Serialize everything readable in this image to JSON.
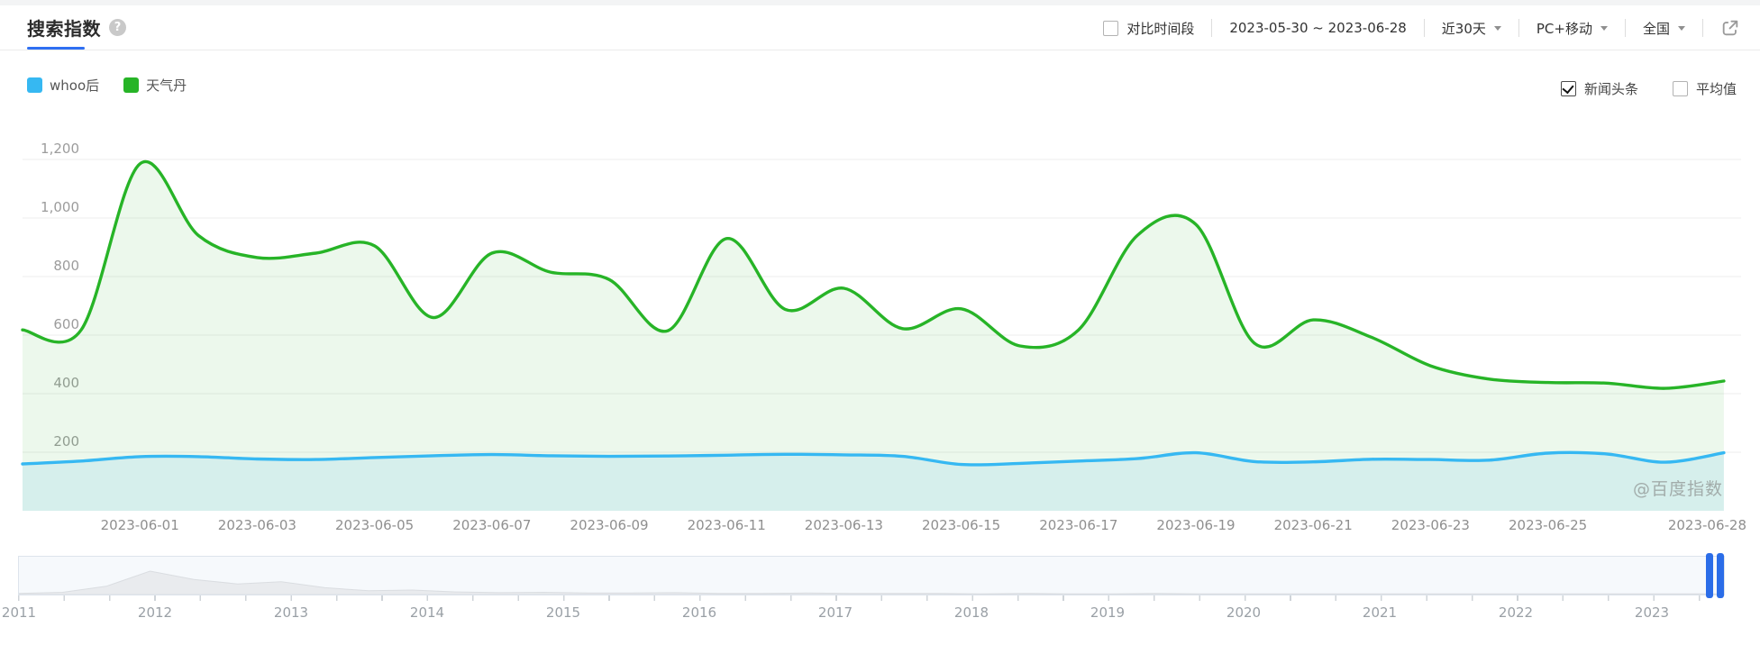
{
  "header": {
    "title": "搜索指数",
    "help": "?"
  },
  "toolbar": {
    "compare_label": "对比时间段",
    "date_range": "2023-05-30 ~ 2023-06-28",
    "period": "近30天",
    "device": "PC+移动",
    "region": "全国"
  },
  "legend": [
    {
      "name": "whoo后",
      "color": "#36b8f2"
    },
    {
      "name": "天气丹",
      "color": "#27b427"
    }
  ],
  "options": [
    {
      "label": "新闻头条",
      "checked": true
    },
    {
      "label": "平均值",
      "checked": false
    }
  ],
  "watermark": "@百度指数",
  "colors": {
    "accent_blue": "#2f6ff2",
    "slider_handle": "#2b6de8",
    "grid_line": "#ededed",
    "axis_text": "#9c9c9c"
  },
  "chart_data": {
    "type": "line",
    "title": "搜索指数",
    "x": [
      "2023-05-30",
      "2023-05-31",
      "2023-06-01",
      "2023-06-02",
      "2023-06-03",
      "2023-06-04",
      "2023-06-05",
      "2023-06-06",
      "2023-06-07",
      "2023-06-08",
      "2023-06-09",
      "2023-06-10",
      "2023-06-11",
      "2023-06-12",
      "2023-06-13",
      "2023-06-14",
      "2023-06-15",
      "2023-06-16",
      "2023-06-17",
      "2023-06-18",
      "2023-06-19",
      "2023-06-20",
      "2023-06-21",
      "2023-06-22",
      "2023-06-23",
      "2023-06-24",
      "2023-06-25",
      "2023-06-26",
      "2023-06-27",
      "2023-06-28"
    ],
    "series": [
      {
        "name": "天气丹",
        "color": "#27b427",
        "fill": "rgba(39,180,39,0.09)",
        "values": [
          618,
          618,
          1185,
          940,
          865,
          880,
          905,
          660,
          880,
          815,
          790,
          615,
          930,
          688,
          760,
          622,
          690,
          563,
          618,
          940,
          978,
          572,
          652,
          592,
          495,
          450,
          438,
          436,
          418,
          443
        ]
      },
      {
        "name": "whoo后",
        "color": "#36b8f2",
        "fill": "rgba(54,184,242,0.12)",
        "values": [
          160,
          170,
          185,
          185,
          177,
          175,
          182,
          188,
          192,
          188,
          186,
          187,
          190,
          193,
          191,
          186,
          158,
          162,
          170,
          178,
          198,
          168,
          167,
          176,
          175,
          173,
          197,
          194,
          166,
          198
        ]
      }
    ],
    "ylim": [
      0,
      1200
    ],
    "yticks": [
      {
        "v": 200,
        "label": "200"
      },
      {
        "v": 400,
        "label": "400"
      },
      {
        "v": 600,
        "label": "600"
      },
      {
        "v": 800,
        "label": "800"
      },
      {
        "v": 1000,
        "label": "1,000"
      },
      {
        "v": 1200,
        "label": "1,200"
      }
    ],
    "xticks": [
      {
        "i": 2,
        "label": "2023-06-01"
      },
      {
        "i": 4,
        "label": "2023-06-03"
      },
      {
        "i": 6,
        "label": "2023-06-05"
      },
      {
        "i": 8,
        "label": "2023-06-07"
      },
      {
        "i": 10,
        "label": "2023-06-09"
      },
      {
        "i": 12,
        "label": "2023-06-11"
      },
      {
        "i": 14,
        "label": "2023-06-13"
      },
      {
        "i": 16,
        "label": "2023-06-15"
      },
      {
        "i": 18,
        "label": "2023-06-17"
      },
      {
        "i": 20,
        "label": "2023-06-19"
      },
      {
        "i": 22,
        "label": "2023-06-21"
      },
      {
        "i": 24,
        "label": "2023-06-23"
      },
      {
        "i": 26,
        "label": "2023-06-25"
      },
      {
        "i": 29,
        "label": "2023-06-28"
      }
    ],
    "grid": true,
    "legend_position": "top-left"
  },
  "timeline": {
    "years": [
      "2011",
      "2012",
      "2013",
      "2014",
      "2015",
      "2016",
      "2017",
      "2018",
      "2019",
      "2020",
      "2021",
      "2022",
      "2023"
    ],
    "minimap": [
      0.03,
      0.06,
      0.22,
      0.62,
      0.4,
      0.28,
      0.34,
      0.18,
      0.1,
      0.12,
      0.07,
      0.05,
      0.06,
      0.04,
      0.04,
      0.05,
      0.03,
      0.03,
      0.04,
      0.03,
      0.03,
      0.03,
      0.02,
      0.03,
      0.02,
      0.02,
      0.03,
      0.02,
      0.02,
      0.02,
      0.02,
      0.02,
      0.02,
      0.02,
      0.02,
      0.02,
      0.02,
      0.02,
      0.02,
      0.02
    ]
  }
}
